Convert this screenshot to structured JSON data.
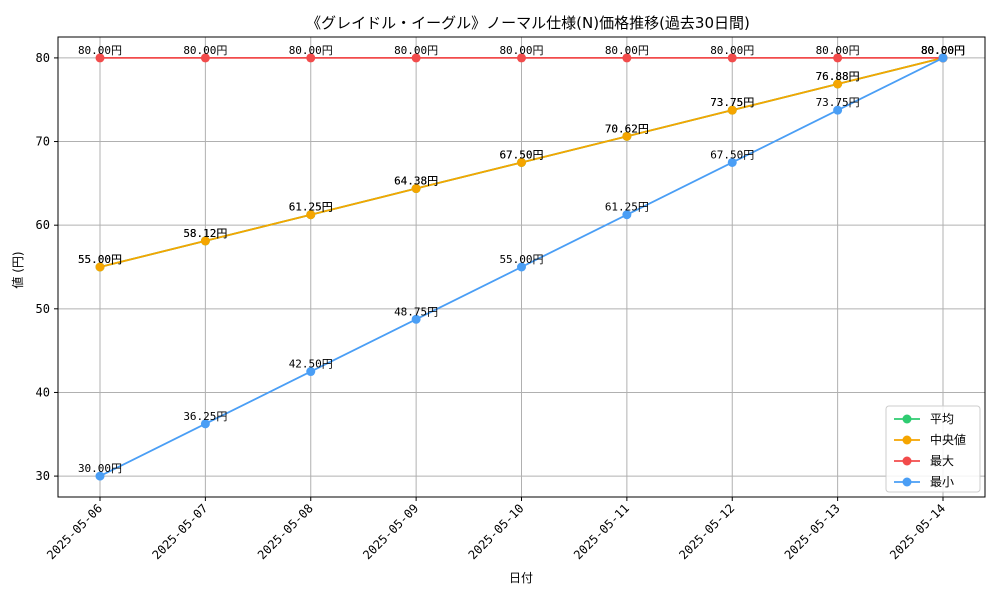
{
  "chart_data": {
    "type": "line",
    "title": "《グレイドル・イーグル》ノーマル仕様(N)価格推移(過去30日間)",
    "xlabel": "日付",
    "ylabel": "値 (円)",
    "ylim": [
      27.5,
      82.5
    ],
    "yticks": [
      30,
      40,
      50,
      60,
      70,
      80
    ],
    "grid": true,
    "legend_position": "bottom-right",
    "categories": [
      "2025-05-06",
      "2025-05-07",
      "2025-05-08",
      "2025-05-09",
      "2025-05-10",
      "2025-05-11",
      "2025-05-12",
      "2025-05-13",
      "2025-05-14"
    ],
    "series": [
      {
        "name": "平均",
        "color": "#2ecc71",
        "values": [
          55.0,
          58.12,
          61.25,
          64.38,
          67.5,
          70.62,
          73.75,
          76.88,
          80.0
        ]
      },
      {
        "name": "中央値",
        "color": "#f5a500",
        "values": [
          55.0,
          58.12,
          61.25,
          64.38,
          67.5,
          70.62,
          73.75,
          76.88,
          80.0
        ]
      },
      {
        "name": "最大",
        "color": "#f24b4b",
        "values": [
          80.0,
          80.0,
          80.0,
          80.0,
          80.0,
          80.0,
          80.0,
          80.0,
          80.0
        ]
      },
      {
        "name": "最小",
        "color": "#4a9ef5",
        "values": [
          30.0,
          36.25,
          42.5,
          48.75,
          55.0,
          61.25,
          67.5,
          73.75,
          80.0
        ]
      }
    ],
    "value_suffix": "円"
  }
}
